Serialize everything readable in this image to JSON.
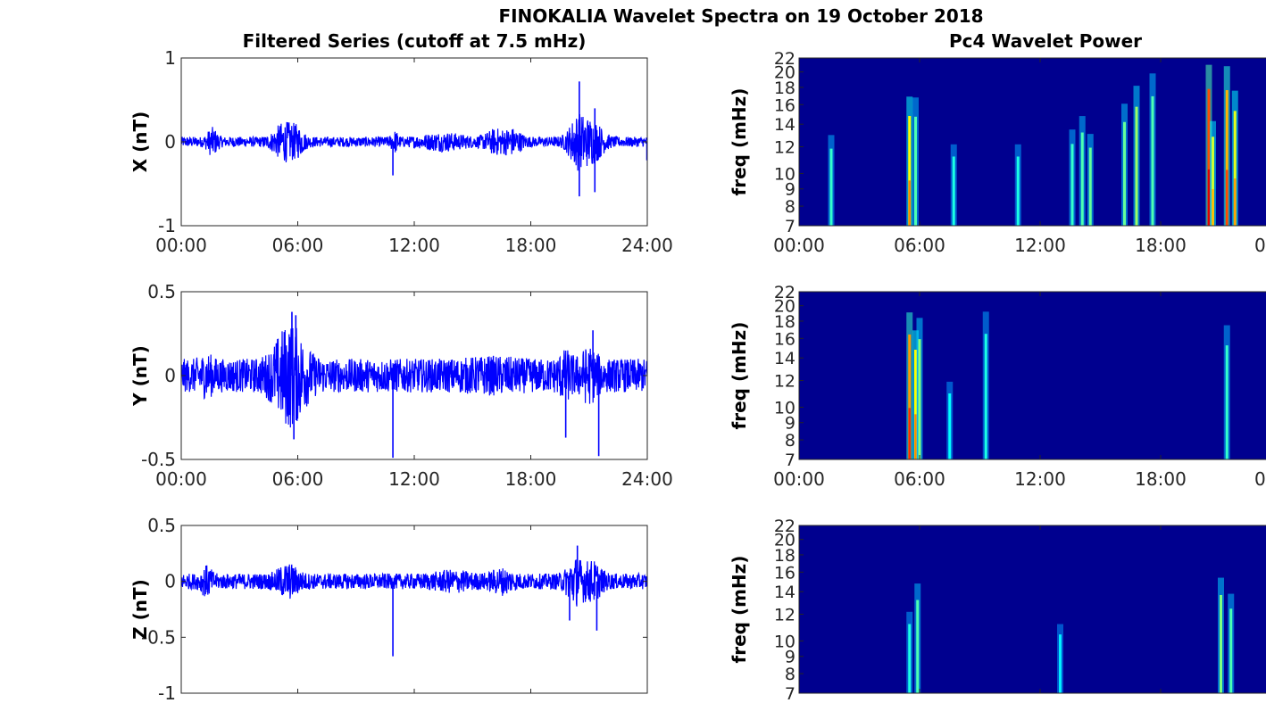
{
  "figure": {
    "title": "FINOKALIA Wavelet Spectra on 19 October 2018",
    "left_title": "Filtered Series (cutoff at 7.5 mHz)",
    "right_title": "Pc4 Wavelet Power"
  },
  "chart_data": [
    {
      "type": "line",
      "ylabel": "X (nT)",
      "ylim": [
        -1,
        1
      ],
      "yticks": [
        "1",
        "0",
        "-1"
      ],
      "ytick_values": [
        1,
        0,
        -1
      ],
      "xlim_hours": [
        0,
        24
      ],
      "xticks": [
        "00:00",
        "06:00",
        "12:00",
        "18:00",
        "24:00"
      ],
      "color": "#0000ff",
      "noise_amplitude": 0.06,
      "bursts": [
        {
          "t": 1.6,
          "w": 0.3,
          "a": 0.12
        },
        {
          "t": 5.3,
          "w": 0.6,
          "a": 0.18
        },
        {
          "t": 6.0,
          "w": 0.4,
          "a": 0.1
        },
        {
          "t": 11.0,
          "w": 0.2,
          "a": 0.08
        },
        {
          "t": 13.5,
          "w": 1.2,
          "a": 0.06
        },
        {
          "t": 16.2,
          "w": 0.6,
          "a": 0.1
        },
        {
          "t": 17.1,
          "w": 0.5,
          "a": 0.1
        },
        {
          "t": 20.4,
          "w": 0.5,
          "a": 0.25
        },
        {
          "t": 21.2,
          "w": 0.6,
          "a": 0.2
        }
      ],
      "spikes": [
        {
          "t": 10.9,
          "v": -0.4
        },
        {
          "t": 20.5,
          "v": 0.72
        },
        {
          "t": 20.5,
          "v": -0.65
        },
        {
          "t": 21.3,
          "v": -0.6
        },
        {
          "t": 21.3,
          "v": 0.4
        },
        {
          "t": 23.98,
          "v": -0.22
        }
      ]
    },
    {
      "type": "line",
      "ylabel": "Y (nT)",
      "ylim": [
        -0.5,
        0.5
      ],
      "yticks": [
        "0.5",
        "0",
        "-0.5"
      ],
      "ytick_values": [
        0.5,
        0,
        -0.5
      ],
      "xlim_hours": [
        0,
        24
      ],
      "xticks": [
        "00:00",
        "06:00",
        "12:00",
        "18:00",
        "24:00"
      ],
      "color": "#0000ff",
      "noise_amplitude": 0.1,
      "bursts": [
        {
          "t": 5.6,
          "w": 0.9,
          "a": 0.22
        },
        {
          "t": 1.3,
          "w": 0.4,
          "a": 0.04
        },
        {
          "t": 16.0,
          "w": 1.5,
          "a": 0.02
        },
        {
          "t": 19.8,
          "w": 0.4,
          "a": 0.06
        },
        {
          "t": 21.0,
          "w": 0.5,
          "a": 0.08
        }
      ],
      "spikes": [
        {
          "t": 5.7,
          "v": 0.38
        },
        {
          "t": 5.9,
          "v": 0.36
        },
        {
          "t": 5.8,
          "v": -0.38
        },
        {
          "t": 10.9,
          "v": -0.49
        },
        {
          "t": 19.8,
          "v": -0.37
        },
        {
          "t": 21.5,
          "v": -0.48
        },
        {
          "t": 21.2,
          "v": 0.27
        }
      ]
    },
    {
      "type": "line",
      "ylabel": "Z (nT)",
      "ylim": [
        -1,
        0.5
      ],
      "yticks": [
        "0.5",
        "0",
        "-0.5",
        "-1"
      ],
      "ytick_values": [
        0.5,
        0,
        -0.5,
        -1
      ],
      "xlim_hours": [
        0,
        24
      ],
      "xticks": [],
      "color": "#0000ff",
      "noise_amplitude": 0.07,
      "bursts": [
        {
          "t": 1.3,
          "w": 0.3,
          "a": 0.08
        },
        {
          "t": 5.5,
          "w": 0.6,
          "a": 0.1
        },
        {
          "t": 14.0,
          "w": 1.0,
          "a": 0.04
        },
        {
          "t": 16.5,
          "w": 0.6,
          "a": 0.06
        },
        {
          "t": 20.3,
          "w": 0.5,
          "a": 0.15
        },
        {
          "t": 21.2,
          "w": 0.5,
          "a": 0.12
        }
      ],
      "spikes": [
        {
          "t": 10.9,
          "v": -0.67
        },
        {
          "t": 20.0,
          "v": -0.35
        },
        {
          "t": 20.4,
          "v": 0.32
        },
        {
          "t": 21.4,
          "v": -0.44
        }
      ]
    },
    {
      "type": "heatmap",
      "ylabel": "freq (mHz)",
      "ylim_mhz": [
        7,
        22
      ],
      "yticks": [
        "22",
        "20",
        "18",
        "16",
        "14",
        "12",
        "10",
        "9",
        "8",
        "7"
      ],
      "ytick_values": [
        22,
        20,
        18,
        16,
        14,
        12,
        10,
        9,
        8,
        7
      ],
      "xlim_hours": [
        0,
        24
      ],
      "xticks": [
        "00:00",
        "06:00",
        "12:00",
        "18:00",
        "00"
      ],
      "background": "#00008f",
      "streaks": [
        {
          "t": 1.6,
          "f": 9.5,
          "i": 0.25
        },
        {
          "t": 5.5,
          "f": 11.0,
          "i": 0.65
        },
        {
          "t": 5.8,
          "f": 13.0,
          "i": 0.3
        },
        {
          "t": 7.7,
          "f": 9.0,
          "i": 0.2
        },
        {
          "t": 10.9,
          "f": 9.0,
          "i": 0.2
        },
        {
          "t": 13.6,
          "f": 10.0,
          "i": 0.25
        },
        {
          "t": 14.1,
          "f": 11.0,
          "i": 0.3
        },
        {
          "t": 14.5,
          "f": 9.0,
          "i": 0.35
        },
        {
          "t": 16.2,
          "f": 12.0,
          "i": 0.35
        },
        {
          "t": 16.8,
          "f": 13.5,
          "i": 0.45
        },
        {
          "t": 17.6,
          "f": 16.0,
          "i": 0.3
        },
        {
          "t": 20.4,
          "f": 13.0,
          "i": 1.0
        },
        {
          "t": 20.6,
          "f": 9.0,
          "i": 0.55
        },
        {
          "t": 21.3,
          "f": 14.0,
          "i": 0.8
        },
        {
          "t": 21.7,
          "f": 12.0,
          "i": 0.6
        }
      ]
    },
    {
      "type": "heatmap",
      "ylabel": "freq (mHz)",
      "ylim_mhz": [
        7,
        22
      ],
      "yticks": [
        "22",
        "20",
        "18",
        "16",
        "14",
        "12",
        "10",
        "9",
        "8",
        "7"
      ],
      "ytick_values": [
        22,
        20,
        18,
        16,
        14,
        12,
        10,
        9,
        8,
        7
      ],
      "xlim_hours": [
        0,
        24
      ],
      "xticks": [
        "00:00",
        "06:00",
        "12:00",
        "18:00",
        "00"
      ],
      "background": "#00008f",
      "streaks": [
        {
          "t": 5.5,
          "f": 12.0,
          "i": 0.85
        },
        {
          "t": 5.8,
          "f": 11.0,
          "i": 0.65
        },
        {
          "t": 6.0,
          "f": 14.0,
          "i": 0.4
        },
        {
          "t": 7.5,
          "f": 9.0,
          "i": 0.15
        },
        {
          "t": 9.3,
          "f": 16.0,
          "i": 0.2
        },
        {
          "t": 21.3,
          "f": 14.0,
          "i": 0.25
        }
      ]
    },
    {
      "type": "heatmap",
      "ylabel": "freq (mHz)",
      "ylim_mhz": [
        7,
        22
      ],
      "yticks": [
        "22",
        "20",
        "18",
        "16",
        "14",
        "12",
        "10",
        "9",
        "8",
        "7"
      ],
      "ytick_values": [
        22,
        20,
        18,
        16,
        14,
        12,
        10,
        9,
        8,
        7
      ],
      "xlim_hours": [
        0,
        24
      ],
      "xticks": [],
      "background": "#00008f",
      "streaks": [
        {
          "t": 5.5,
          "f": 9.0,
          "i": 0.2
        },
        {
          "t": 5.9,
          "f": 11.0,
          "i": 0.3
        },
        {
          "t": 13.0,
          "f": 8.5,
          "i": 0.12
        },
        {
          "t": 21.0,
          "f": 11.0,
          "i": 0.4
        },
        {
          "t": 21.5,
          "f": 10.0,
          "i": 0.3
        }
      ]
    }
  ]
}
